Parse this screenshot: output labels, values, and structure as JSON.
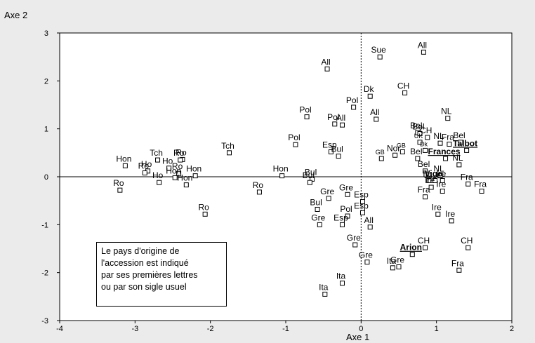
{
  "chart_data": {
    "type": "scatter",
    "xlabel": "Axe 1",
    "ylabel": "Axe 2",
    "xlim": [
      -4,
      2
    ],
    "ylim": [
      -3,
      3
    ],
    "xticks": [
      "-4",
      "-3",
      "-2",
      "-1",
      "0",
      "1",
      "2"
    ],
    "yticks": [
      "3",
      "2",
      "1",
      "0",
      "-1",
      "-2",
      "-3"
    ],
    "grid": false,
    "reference_lines": [
      0,
      0
    ],
    "note": [
      "Le pays d'origine de",
      "l'accession est indiqué",
      "par ses premières lettres",
      "ou par son sigle usuel"
    ],
    "points": [
      {
        "label": "Hon",
        "x": -3.13,
        "y": 0.23
      },
      {
        "label": "Ho",
        "x": -2.83,
        "y": 0.12
      },
      {
        "label": "Tch",
        "x": -2.7,
        "y": 0.35
      },
      {
        "label": "Ro",
        "x": -2.37,
        "y": 0.36
      },
      {
        "label": "Ro",
        "x": -2.4,
        "y": 0.35
      },
      {
        "label": "Ho",
        "x": -2.55,
        "y": 0.18
      },
      {
        "label": "Ro",
        "x": -2.87,
        "y": 0.08
      },
      {
        "label": "Ho",
        "x": -2.68,
        "y": -0.12
      },
      {
        "label": "Ro",
        "x": -2.42,
        "y": 0.07
      },
      {
        "label": "Hon",
        "x": -2.47,
        "y": -0.02
      },
      {
        "label": "Hon",
        "x": -2.2,
        "y": 0.02
      },
      {
        "label": "Hon",
        "x": -2.32,
        "y": -0.17
      },
      {
        "label": "Ro",
        "x": -3.2,
        "y": -0.28
      },
      {
        "label": "Ro",
        "x": -2.07,
        "y": -0.78
      },
      {
        "label": "Tch",
        "x": -1.75,
        "y": 0.5
      },
      {
        "label": "Ro",
        "x": -1.35,
        "y": -0.32
      },
      {
        "label": "Hon",
        "x": -1.05,
        "y": 0.02
      },
      {
        "label": "Pol",
        "x": -0.87,
        "y": 0.67
      },
      {
        "label": "Pol",
        "x": -0.72,
        "y": 1.25
      },
      {
        "label": "All",
        "x": -0.45,
        "y": 2.25
      },
      {
        "label": "Pol",
        "x": -0.35,
        "y": 1.1
      },
      {
        "label": "All",
        "x": -0.25,
        "y": 1.08
      },
      {
        "label": "Pol",
        "x": -0.1,
        "y": 1.45
      },
      {
        "label": "All",
        "x": 0.2,
        "y": 1.2
      },
      {
        "label": "Esp",
        "x": -0.4,
        "y": 0.52
      },
      {
        "label": "Bul",
        "x": -0.3,
        "y": 0.43
      },
      {
        "label": "Bul",
        "x": -0.65,
        "y": -0.05
      },
      {
        "label": "Bul",
        "x": -0.68,
        "y": -0.12
      },
      {
        "label": "Gre",
        "x": -0.43,
        "y": -0.45
      },
      {
        "label": "Bul",
        "x": -0.58,
        "y": -0.68
      },
      {
        "label": "Gre",
        "x": -0.18,
        "y": -0.37
      },
      {
        "label": "Esp",
        "x": 0.02,
        "y": -0.52
      },
      {
        "label": "Pol",
        "x": -0.18,
        "y": -0.82
      },
      {
        "label": "Gre",
        "x": -0.55,
        "y": -1.0
      },
      {
        "label": "Esp",
        "x": 0.02,
        "y": -0.75
      },
      {
        "label": "Esp",
        "x": -0.25,
        "y": -1.0
      },
      {
        "label": "All",
        "x": 0.12,
        "y": -1.05
      },
      {
        "label": "Gre",
        "x": -0.08,
        "y": -1.42
      },
      {
        "label": "Gre",
        "x": 0.08,
        "y": -1.78
      },
      {
        "label": "Ita",
        "x": -0.25,
        "y": -2.22
      },
      {
        "label": "Ita",
        "x": -0.48,
        "y": -2.45
      },
      {
        "label": "Sue",
        "x": 0.25,
        "y": 2.5
      },
      {
        "label": "All",
        "x": 0.83,
        "y": 2.6
      },
      {
        "label": "Dk",
        "x": 0.12,
        "y": 1.68
      },
      {
        "label": "CH",
        "x": 0.58,
        "y": 1.75
      },
      {
        "label": "NL",
        "x": 1.15,
        "y": 1.22
      },
      {
        "label": "Nor",
        "x": 0.45,
        "y": 0.45
      },
      {
        "label": "GB",
        "x": 0.27,
        "y": 0.38
      },
      {
        "label": "GB",
        "x": 0.55,
        "y": 0.52
      },
      {
        "label": "Bel",
        "x": 0.75,
        "y": 0.92
      },
      {
        "label": "Bel",
        "x": 0.78,
        "y": 0.9
      },
      {
        "label": "CH",
        "x": 0.88,
        "y": 0.82
      },
      {
        "label": "UK",
        "x": 0.78,
        "y": 0.72
      },
      {
        "label": "Dk",
        "x": 0.85,
        "y": 0.55
      },
      {
        "label": "Fra",
        "x": 1.17,
        "y": 0.68
      },
      {
        "label": "Bel",
        "x": 1.32,
        "y": 0.72
      },
      {
        "label": "NL",
        "x": 1.05,
        "y": 0.7
      },
      {
        "label": "Frances",
        "x": 1.12,
        "y": 0.38,
        "bold": true
      },
      {
        "label": "Talbot",
        "x": 1.4,
        "y": 0.55,
        "bold": true
      },
      {
        "label": "Bel",
        "x": 0.75,
        "y": 0.38
      },
      {
        "label": "Bel",
        "x": 0.85,
        "y": 0.12
      },
      {
        "label": "NL",
        "x": 1.3,
        "y": 0.25
      },
      {
        "label": "NL",
        "x": 1.05,
        "y": 0.02
      },
      {
        "label": "Ire",
        "x": 1.08,
        "y": -0.08
      },
      {
        "label": "Ita",
        "x": 0.9,
        "y": -0.08
      },
      {
        "label": "Vigo",
        "x": 0.98,
        "y": -0.08,
        "bold": true
      },
      {
        "label": "Ire",
        "x": 0.93,
        "y": -0.22
      },
      {
        "label": "Fra",
        "x": 0.85,
        "y": -0.42
      },
      {
        "label": "Ire",
        "x": 1.08,
        "y": -0.3
      },
      {
        "label": "Fra",
        "x": 1.42,
        "y": -0.15
      },
      {
        "label": "Fra",
        "x": 1.6,
        "y": -0.3
      },
      {
        "label": "Ire",
        "x": 1.02,
        "y": -0.78
      },
      {
        "label": "Ire",
        "x": 1.2,
        "y": -0.92
      },
      {
        "label": "CH",
        "x": 0.85,
        "y": -1.48
      },
      {
        "label": "Arion",
        "x": 0.68,
        "y": -1.62,
        "bold": true
      },
      {
        "label": "Gre",
        "x": 0.5,
        "y": -1.88
      },
      {
        "label": "Ita",
        "x": 0.42,
        "y": -1.9
      },
      {
        "label": "CH",
        "x": 1.42,
        "y": -1.48
      },
      {
        "label": "Fra",
        "x": 1.3,
        "y": -1.95
      }
    ]
  }
}
